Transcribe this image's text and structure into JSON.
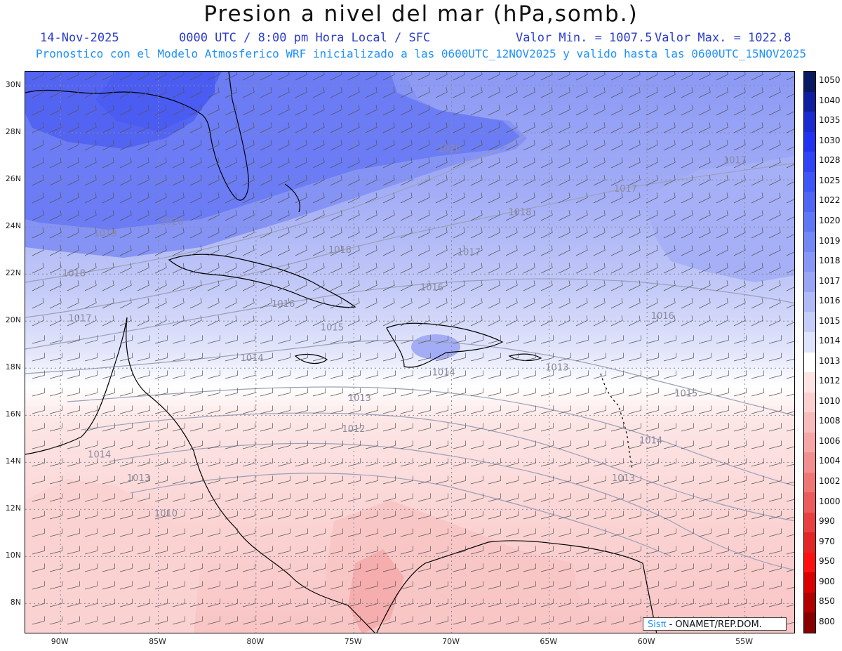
{
  "header": {
    "title": "Presion a nivel del mar (hPa,somb.)",
    "date": "14-Nov-2025",
    "valid_time": "0000 UTC / 8:00 pm Hora Local / SFC",
    "value_min": "Valor Min. = 1007.5",
    "value_max": "Valor Max. = 1022.8",
    "description": "Pronostico con el Modelo Atmosferico WRF inicializado a las 0600UTC_12NOV2025 y valido hasta las  0600UTC_15NOV2025"
  },
  "credit": {
    "brand": "Sisπ",
    "org": " - ONAMET/REP.DOM."
  },
  "axes": {
    "lat_labels": [
      "30N",
      "28N",
      "26N",
      "24N",
      "22N",
      "20N",
      "18N",
      "16N",
      "14N",
      "12N",
      "10N",
      "8N"
    ],
    "lon_labels": [
      "90W",
      "85W",
      "80W",
      "75W",
      "70W",
      "65W",
      "60W",
      "55W"
    ]
  },
  "legend": {
    "levels": [
      "1050",
      "1040",
      "1035",
      "1030",
      "1028",
      "1025",
      "1022",
      "1020",
      "1019",
      "1018",
      "1017",
      "1016",
      "1015",
      "1014",
      "1013",
      "1012",
      "1010",
      "1008",
      "1006",
      "1004",
      "1002",
      "1000",
      "990",
      "970",
      "950",
      "900",
      "850",
      "800"
    ],
    "colors": [
      "#0a1a60",
      "#0f1fa0",
      "#1a2bd0",
      "#2233f0",
      "#2f44f5",
      "#3e56f5",
      "#4f66f5",
      "#6077f5",
      "#7388f5",
      "#8797f5",
      "#9aa6f5",
      "#b0baf7",
      "#c6cdf8",
      "#dfe3fb",
      "#ffffff",
      "#fde4e4",
      "#fbd0d0",
      "#f9bcbc",
      "#f6a6a6",
      "#f38f8f",
      "#f07676",
      "#ec5c5c",
      "#e84040",
      "#e42525",
      "#ff1010",
      "#d80000",
      "#b00000",
      "#880000"
    ]
  },
  "contour_labels": [
    {
      "text": "1020",
      "lon": -70.7,
      "lat": 27.2
    },
    {
      "text": "1020",
      "lon": -84.9,
      "lat": 24.1
    },
    {
      "text": "1019",
      "lon": -88.3,
      "lat": 23.6
    },
    {
      "text": "1018",
      "lon": -89.9,
      "lat": 21.9
    },
    {
      "text": "1017",
      "lon": -89.6,
      "lat": 20.0
    },
    {
      "text": "1018",
      "lon": -67.1,
      "lat": 24.5
    },
    {
      "text": "1018",
      "lon": -76.3,
      "lat": 22.9
    },
    {
      "text": "1017",
      "lon": -69.7,
      "lat": 22.8
    },
    {
      "text": "1017",
      "lon": -61.7,
      "lat": 25.5
    },
    {
      "text": "1017",
      "lon": -56.1,
      "lat": 26.7
    },
    {
      "text": "1016",
      "lon": -79.2,
      "lat": 20.6
    },
    {
      "text": "1016",
      "lon": -71.6,
      "lat": 21.3
    },
    {
      "text": "1016",
      "lon": -59.8,
      "lat": 20.1
    },
    {
      "text": "1015",
      "lon": -76.7,
      "lat": 19.6
    },
    {
      "text": "1015",
      "lon": -58.6,
      "lat": 16.8
    },
    {
      "text": "1014",
      "lon": -80.8,
      "lat": 18.3
    },
    {
      "text": "1014",
      "lon": -71.0,
      "lat": 17.7
    },
    {
      "text": "1014",
      "lon": -60.4,
      "lat": 14.8
    },
    {
      "text": "1013",
      "lon": -75.3,
      "lat": 16.6
    },
    {
      "text": "1013",
      "lon": -86.6,
      "lat": 13.2
    },
    {
      "text": "1013",
      "lon": -61.8,
      "lat": 13.2
    },
    {
      "text": "1012",
      "lon": -75.6,
      "lat": 15.3
    },
    {
      "text": "1010",
      "lon": -85.2,
      "lat": 11.7
    },
    {
      "text": "1014",
      "lon": -88.6,
      "lat": 14.2
    },
    {
      "text": "1013",
      "lon": -65.2,
      "lat": 17.9
    }
  ]
}
